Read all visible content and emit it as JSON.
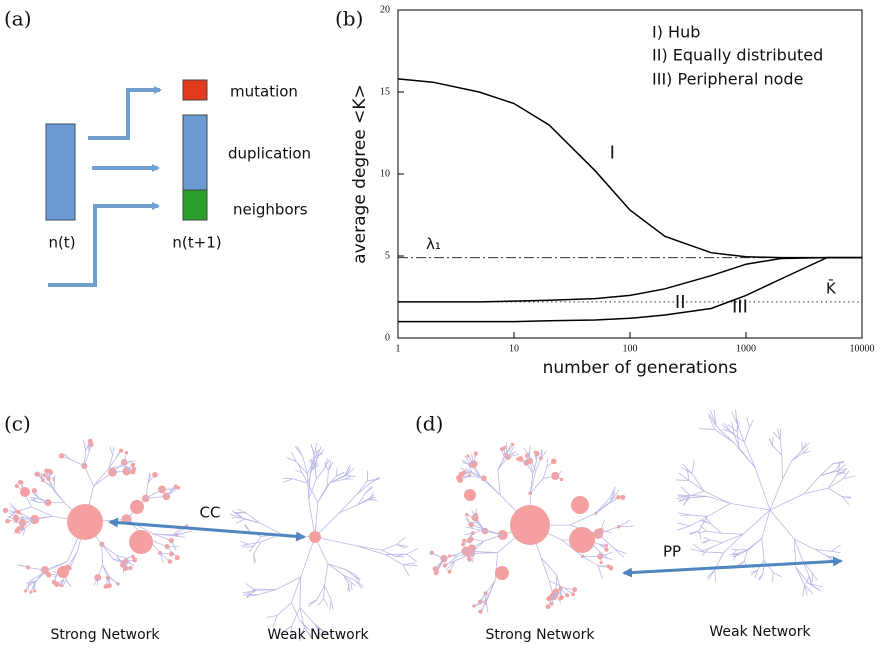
{
  "panel_a": {
    "label": "(a)",
    "before": "n(t)",
    "after": "n(t+1)",
    "boxes": [
      "mutation",
      "duplication",
      "neighbors"
    ]
  },
  "chart_data": {
    "type": "line",
    "panel_label": "(b)",
    "x_label": "number of generations",
    "y_label": "average degree <K>",
    "legend": [
      "I) Hub",
      "II) Equally distributed",
      "III) Peripheral node"
    ],
    "x": [
      1,
      2,
      5,
      10,
      20,
      50,
      100,
      200,
      500,
      1000,
      2000,
      5000,
      10000
    ],
    "series": [
      {
        "name": "I",
        "color": "#000000",
        "values": [
          15.8,
          15.6,
          15.0,
          14.3,
          13.0,
          10.2,
          7.8,
          6.2,
          5.2,
          4.95,
          4.9,
          4.9,
          4.9
        ]
      },
      {
        "name": "II",
        "color": "#000000",
        "values": [
          2.2,
          2.2,
          2.2,
          2.25,
          2.3,
          2.4,
          2.6,
          3.0,
          3.8,
          4.5,
          4.85,
          4.9,
          4.9
        ]
      },
      {
        "name": "III",
        "color": "#000000",
        "values": [
          1.0,
          1.0,
          1.0,
          1.0,
          1.05,
          1.1,
          1.2,
          1.4,
          1.8,
          2.6,
          3.6,
          4.9,
          4.9
        ]
      }
    ],
    "reference_lines": [
      {
        "label": "λ₁",
        "value": 4.9,
        "style": "dashdot"
      },
      {
        "label": "K̄",
        "value": 2.2,
        "style": "dotted"
      }
    ],
    "log_x": true,
    "xlim": [
      1,
      10000
    ],
    "xticks": [
      1,
      10,
      100,
      1000,
      10000
    ],
    "ylim": [
      0,
      20
    ],
    "yticks": [
      0,
      5,
      10,
      15,
      20
    ]
  },
  "panel_c": {
    "label": "(c)",
    "link": "CC",
    "left": "Strong Network",
    "right": "Weak Network"
  },
  "panel_d": {
    "label": "(d)",
    "link": "PP",
    "left": "Strong Network",
    "right": "Weak Network"
  }
}
